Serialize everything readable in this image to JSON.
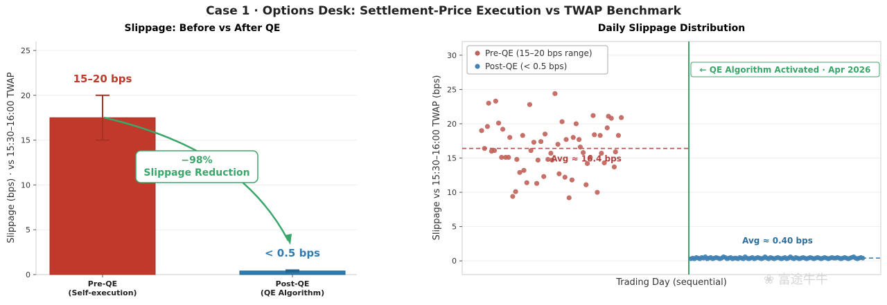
{
  "figure_title": "Case 1  ·  Options Desk: Settlement-Price Execution vs TWAP Benchmark",
  "watermark": "富途牛牛",
  "colors": {
    "pre": "#c0392b",
    "post": "#2e7bb0",
    "accent": "#3aa66a",
    "pre_dot": "#c0605a",
    "post_dot": "#3f82b3"
  },
  "chart_data": [
    {
      "type": "bar",
      "title": "Slippage: Before vs After QE",
      "ylabel": "Slippage (bps)  ·  vs 15:30–16:00 TWAP",
      "xlabel": "",
      "ylim": [
        0,
        26
      ],
      "yticks": [
        0,
        5,
        10,
        15,
        20,
        25
      ],
      "categories": [
        "Pre-QE\n(Self-execution)",
        "Post-QE\n(QE Algorithm)"
      ],
      "values": [
        17.5,
        0.4
      ],
      "error_bars": [
        [
          15,
          20
        ],
        [
          0.3,
          0.5
        ]
      ],
      "bar_labels": [
        "15–20 bps",
        "< 0.5 bps"
      ],
      "annotation": {
        "line1": "−98%",
        "line2": "Slippage Reduction"
      },
      "grid": true
    },
    {
      "type": "scatter",
      "title": "Daily Slippage Distribution",
      "ylabel": "Slippage vs 15:30–16:00 TWAP (bps)",
      "xlabel": "Trading Day (sequential)",
      "ylim": [
        -2,
        32
      ],
      "yticks": [
        0,
        5,
        10,
        15,
        20,
        25,
        30
      ],
      "legend_position": "top-left",
      "grid": true,
      "series": [
        {
          "name": "Pre-QE (15–20 bps range)",
          "values": [
            19.0,
            16.4,
            19.6,
            23.0,
            16.0,
            16.1,
            23.3,
            20.1,
            15.1,
            19.2,
            15.1,
            15.1,
            18.0,
            9.4,
            10.1,
            14.8,
            12.9,
            18.3,
            13.2,
            11.4,
            22.8,
            16.1,
            17.3,
            11.3,
            14.7,
            17.4,
            12.3,
            18.5,
            14.8,
            15.7,
            14.7,
            24.4,
            17.0,
            12.7,
            20.3,
            12.2,
            17.7,
            9.2,
            11.8,
            18.0,
            20.0,
            17.7,
            16.6,
            15.8,
            11.1,
            14.2,
            15.1,
            21.2,
            18.4,
            10.0,
            18.3,
            15.7,
            14.3,
            19.4,
            21.1,
            20.8,
            13.7,
            15.9,
            18.3,
            20.9
          ],
          "average": 16.4,
          "average_label": "Avg ≈ 16.4 bps"
        },
        {
          "name": "Post-QE (< 0.5 bps)",
          "values": [
            0.3,
            0.4,
            0.3,
            0.5,
            0.4,
            0.3,
            0.5,
            0.4,
            0.6,
            0.3,
            0.4,
            0.5,
            0.3,
            0.4,
            0.5,
            0.4,
            0.3,
            0.4,
            0.6,
            0.5,
            0.3,
            0.4,
            0.5,
            0.3,
            0.4,
            0.4,
            0.3,
            0.5,
            0.4,
            0.3,
            0.6,
            0.4,
            0.3,
            0.4,
            0.5,
            0.3,
            0.4,
            0.5,
            0.4,
            0.3,
            0.4,
            0.6,
            0.4,
            0.3,
            0.5,
            0.4,
            0.3,
            0.4,
            0.5,
            0.4,
            0.3,
            0.4,
            0.5,
            0.3,
            0.4,
            0.6,
            0.4,
            0.3,
            0.5,
            0.4,
            0.3,
            0.4,
            0.5,
            0.4,
            0.3,
            0.4,
            0.5,
            0.4,
            0.3,
            0.4,
            0.5,
            0.4,
            0.3,
            0.4,
            0.5,
            0.4,
            0.3,
            0.4,
            0.5,
            0.4,
            0.4,
            0.5,
            0.4,
            0.3,
            0.4,
            0.5,
            0.4,
            0.3,
            0.4,
            0.5,
            0.6,
            0.4,
            0.3,
            0.4,
            0.5,
            0.4
          ],
          "average": 0.4,
          "average_label": "Avg ≈ 0.40 bps"
        }
      ],
      "event_label": "← QE Algorithm Activated  ·  Apr 2026"
    }
  ]
}
